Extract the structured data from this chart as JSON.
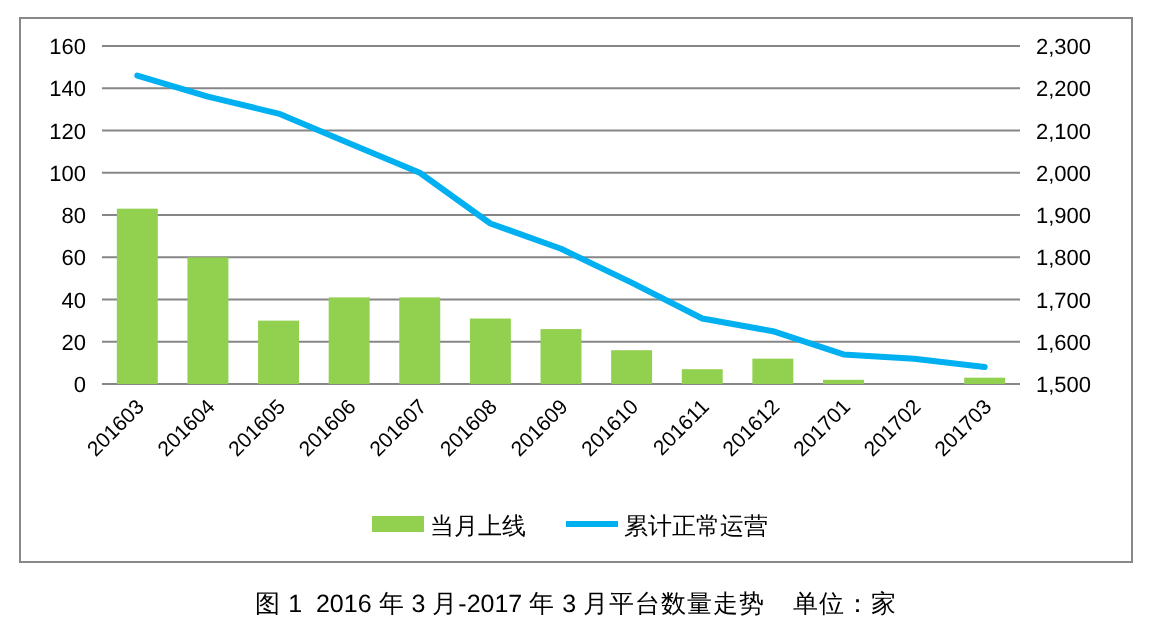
{
  "chart_data": {
    "type": "bar",
    "title": "图 1  2016 年 3 月-2017 年 3 月平台数量走势    单位：家",
    "categories": [
      "201603",
      "201604",
      "201605",
      "201606",
      "201607",
      "201608",
      "201609",
      "201610",
      "201611",
      "201612",
      "201701",
      "201702",
      "201703"
    ],
    "series": [
      {
        "name": "当月上线",
        "color": "#92d050",
        "values": [
          83,
          60,
          30,
          41,
          41,
          31,
          26,
          16,
          7,
          12,
          2,
          0,
          3
        ]
      },
      {
        "name": "累计正常运营",
        "type": "line",
        "axis": "y2",
        "color": "#00b0f0",
        "values": [
          2230,
          2180,
          2140,
          2070,
          2000,
          1880,
          1820,
          1740,
          1655,
          1625,
          1570,
          1560,
          1540
        ]
      }
    ],
    "ylim": [
      0,
      160
    ],
    "yticks": [
      0,
      20,
      40,
      60,
      80,
      100,
      120,
      140,
      160
    ],
    "y2lim": [
      1500,
      2300
    ],
    "y2ticks": [
      {
        "value": 1500,
        "label": "1,500"
      },
      {
        "value": 1600,
        "label": "1,600"
      },
      {
        "value": 1700,
        "label": "1,700"
      },
      {
        "value": 1800,
        "label": "1,800"
      },
      {
        "value": 1900,
        "label": "1,900"
      },
      {
        "value": 2000,
        "label": "2,000"
      },
      {
        "value": 2100,
        "label": "2,100"
      },
      {
        "value": 2200,
        "label": "2,200"
      },
      {
        "value": 2300,
        "label": "2,300"
      }
    ],
    "grid": "y",
    "legend": "bottom"
  }
}
